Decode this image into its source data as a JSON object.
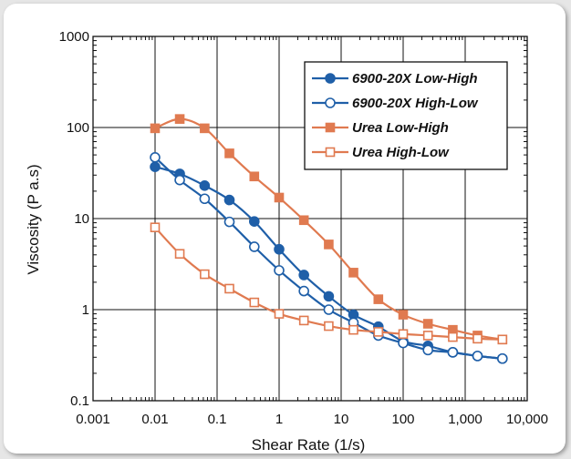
{
  "chart_data": {
    "type": "line",
    "xscale": "log",
    "yscale": "log",
    "xlabel": "Shear Rate (1/s)",
    "ylabel": "Viscosity (P a.s)",
    "xlim": [
      0.001,
      10000
    ],
    "ylim": [
      0.1,
      1000
    ],
    "xticks": [
      0.001,
      0.01,
      0.1,
      1,
      10,
      100,
      1000,
      10000
    ],
    "xtick_labels": [
      "0.001",
      "0.01",
      "0.1",
      "1",
      "10",
      "100",
      "1,000",
      "10,000"
    ],
    "yticks": [
      0.1,
      1,
      10,
      100,
      1000
    ],
    "ytick_labels": [
      "0.1",
      "1",
      "10",
      "100",
      "1000"
    ],
    "grid": true,
    "legend_position": "top-right",
    "series": [
      {
        "name": "6900-20X Low-High",
        "color": "#1f5fa8",
        "marker": "filled-circle",
        "x": [
          0.01,
          0.025,
          0.063,
          0.158,
          0.398,
          1,
          2.51,
          6.31,
          15.8,
          39.8,
          100,
          251,
          631,
          1580,
          3980
        ],
        "y": [
          37,
          31,
          23,
          16,
          9.3,
          4.6,
          2.4,
          1.4,
          0.88,
          0.65,
          0.45,
          0.4,
          0.34,
          0.31,
          0.29
        ]
      },
      {
        "name": "6900-20X High-Low",
        "color": "#1f5fa8",
        "marker": "open-circle",
        "x": [
          0.01,
          0.025,
          0.063,
          0.158,
          0.398,
          1,
          2.51,
          6.31,
          15.8,
          39.8,
          100,
          251,
          631,
          1580,
          3980
        ],
        "y": [
          47,
          26.5,
          16.5,
          9.2,
          4.9,
          2.7,
          1.6,
          1.0,
          0.72,
          0.52,
          0.43,
          0.36,
          0.34,
          0.31,
          0.29
        ]
      },
      {
        "name": "Urea Low-High",
        "color": "#e07a50",
        "marker": "filled-square",
        "x": [
          0.01,
          0.025,
          0.063,
          0.158,
          0.398,
          1,
          2.51,
          6.31,
          15.8,
          39.8,
          100,
          251,
          631,
          1580,
          3980
        ],
        "y": [
          98,
          124,
          98,
          52,
          29,
          17,
          9.6,
          5.2,
          2.55,
          1.3,
          0.88,
          0.7,
          0.6,
          0.52,
          0.47
        ]
      },
      {
        "name": "Urea High-Low",
        "color": "#e07a50",
        "marker": "open-square",
        "x": [
          0.01,
          0.025,
          0.063,
          0.158,
          0.398,
          1,
          2.51,
          6.31,
          15.8,
          39.8,
          100,
          251,
          631,
          1580,
          3980
        ],
        "y": [
          8,
          4.1,
          2.45,
          1.7,
          1.2,
          0.9,
          0.76,
          0.66,
          0.6,
          0.57,
          0.54,
          0.52,
          0.5,
          0.48,
          0.47
        ]
      }
    ]
  }
}
